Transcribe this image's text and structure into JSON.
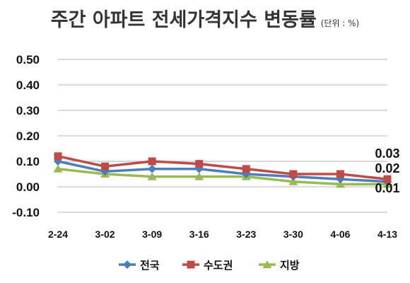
{
  "title": "주간 아파트 전세가격지수 변동률",
  "unit": "(단위 : %)",
  "chart_data": {
    "type": "line",
    "title": "주간 아파트 전세가격지수 변동률",
    "unit": "(단위 : %)",
    "categories": [
      "2-24",
      "3-02",
      "3-09",
      "3-16",
      "3-23",
      "3-30",
      "4-06",
      "4-13"
    ],
    "ylim": [
      -0.1,
      0.5
    ],
    "yticks": [
      "0.50",
      "0.40",
      "0.30",
      "0.20",
      "0.10",
      "0.00",
      "-0.10"
    ],
    "ytick_values": [
      0.5,
      0.4,
      0.3,
      0.2,
      0.1,
      0.0,
      -0.1
    ],
    "grid": true,
    "legend_position": "bottom",
    "series": [
      {
        "name": "전국",
        "color": "#4a7ebb",
        "marker": "diamond",
        "values": [
          0.1,
          0.06,
          0.07,
          0.07,
          0.05,
          0.04,
          0.03,
          0.02
        ],
        "end_label": "0.02"
      },
      {
        "name": "수도권",
        "color": "#be4b48",
        "marker": "square",
        "values": [
          0.12,
          0.08,
          0.1,
          0.09,
          0.07,
          0.05,
          0.05,
          0.03
        ],
        "end_label": "0.03"
      },
      {
        "name": "지방",
        "color": "#98b954",
        "marker": "triangle",
        "values": [
          0.07,
          0.05,
          0.04,
          0.04,
          0.04,
          0.02,
          0.01,
          0.01
        ],
        "end_label": "0.01"
      }
    ]
  }
}
